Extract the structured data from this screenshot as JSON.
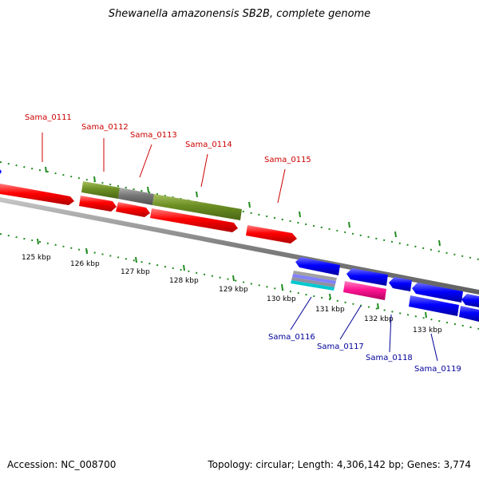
{
  "title": "Shewanella amazonensis SB2B, complete genome",
  "footer": {
    "accession": "Accession: NC_008700",
    "summary": "Topology: circular; Length: 4,306,142 bp; Genes: 3,774"
  },
  "colors": {
    "red": "#ff0000",
    "olive": "#6b8e23",
    "grey": "#808080",
    "blue": "#0000ff",
    "pink": "#ff1493",
    "cyan": "#00c8d0",
    "label_top": "#cc0000",
    "label_bottom": "#000099",
    "tick": "#228b22"
  },
  "scale_labels": [
    "125 kbp",
    "126 kbp",
    "127 kbp",
    "128 kbp",
    "129 kbp",
    "130 kbp",
    "131 kbp",
    "132 kbp",
    "133 kbp"
  ],
  "top_labels": [
    "Sama_0111",
    "Sama_0112",
    "Sama_0113",
    "Sama_0114",
    "Sama_0115"
  ],
  "bottom_labels": [
    "Sama_0116",
    "Sama_0117",
    "Sama_0118",
    "Sama_0119"
  ]
}
